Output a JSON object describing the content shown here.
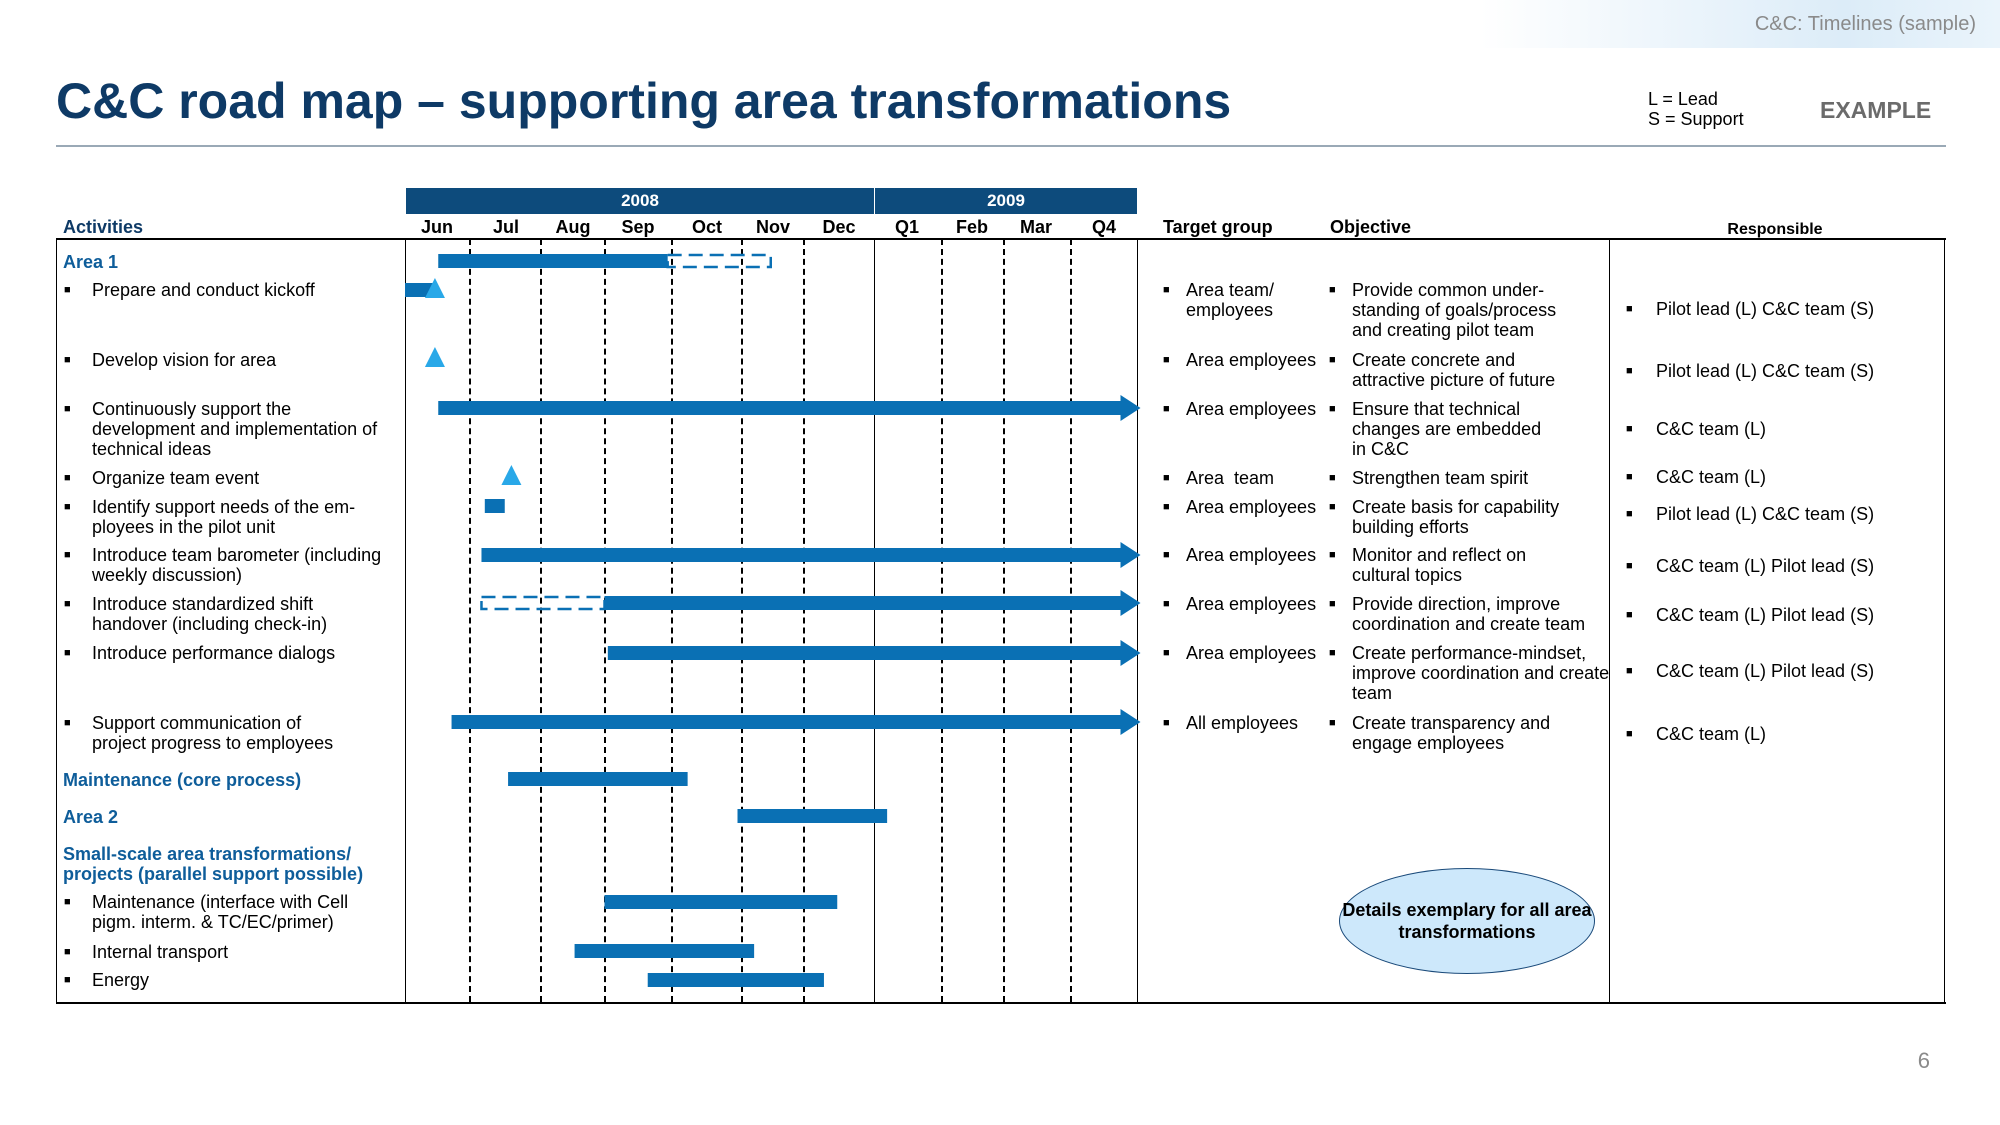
{
  "header": {
    "doc_tag": "C&C:  Timelines (sample)",
    "title": "C&C road map – supporting area transformations",
    "legend_lead": "L = Lead",
    "legend_support": "S = Support",
    "example_tag": "EXAMPLE",
    "page_number": "6"
  },
  "columns": {
    "activities": "Activities",
    "target_group": "Target group",
    "objective": "Objective",
    "responsible": "Responsible"
  },
  "timeline": {
    "years": [
      {
        "label": "2008"
      },
      {
        "label": "2009"
      }
    ],
    "periods": [
      "Jun",
      "Jul",
      "Aug",
      "Sep",
      "Oct",
      "Nov",
      "Dec",
      "Q1",
      "Feb",
      "Mar",
      "Q4"
    ]
  },
  "rows": {
    "area1": {
      "label": "Area 1"
    },
    "kickoff": {
      "activity": "Prepare and conduct kickoff",
      "target": "Area team/ employees",
      "objective": "Provide common under-standing of goals/process and creating pilot team",
      "responsible": "Pilot lead (L) C&C team (S)"
    },
    "vision": {
      "activity": "Develop vision for area",
      "target": "Area employees",
      "objective": "Create concrete and attractive picture of future",
      "responsible": "Pilot lead (L) C&C team (S)"
    },
    "support": {
      "activity": "Continuously support the development and implementation of technical ideas",
      "target": "Area employees",
      "objective": "Ensure that technical changes are embedded in C&C",
      "responsible": "C&C team (L)"
    },
    "event": {
      "activity": "Organize team event",
      "target": "Area  team",
      "objective": "Strengthen team spirit",
      "responsible": "C&C team (L)"
    },
    "needs": {
      "activity": "Identify support needs of the em-ployees in the pilot unit",
      "target": "Area employees",
      "objective": "Create basis for capability building efforts",
      "responsible": "Pilot lead (L) C&C team (S)"
    },
    "barometer": {
      "activity": "Introduce team barometer (including weekly discussion)",
      "target": "Area employees",
      "objective": "Monitor and reflect on cultural topics",
      "responsible": "C&C team (L) Pilot lead (S)"
    },
    "handover": {
      "activity": "Introduce standardized shift handover (including check-in)",
      "target": "Area employees",
      "objective": "Provide direction, improve coordination and create team",
      "responsible": "C&C team (L) Pilot lead (S)"
    },
    "dialogs": {
      "activity": "Introduce performance dialogs",
      "target": "Area employees",
      "objective": "Create performance-mindset, improve coordination and create team",
      "responsible": "C&C team (L) Pilot lead (S)"
    },
    "communication": {
      "activity": "Support communication of project progress to employees",
      "target": "All employees",
      "objective": "Create transparency and engage employees",
      "responsible": "C&C team (L)"
    },
    "maintenance_core": {
      "label": "Maintenance (core process)"
    },
    "area2": {
      "label": "Area 2"
    },
    "small_scale": {
      "label": "Small-scale area transformations/ projects (parallel support possible)"
    },
    "maint_interface": {
      "activity": "Maintenance (interface with Cell pigm. interm. & TC/EC/primer)"
    },
    "transport": {
      "activity": "Internal transport"
    },
    "energy": {
      "activity": "Energy"
    }
  },
  "details_note": "Details exemplary for all area transformations",
  "schedule": {
    "unit": "month index, 0 = start of Jun 2008",
    "bars": [
      {
        "row": "area1",
        "kind": "solid",
        "start": 0.5,
        "end": 3.95
      },
      {
        "row": "area1",
        "kind": "dashed",
        "start": 3.95,
        "end": 5.5
      },
      {
        "row": "kickoff",
        "kind": "solid",
        "start": 0.0,
        "end": 0.45
      },
      {
        "row": "support",
        "kind": "arrow",
        "start": 0.5,
        "end": 11.0
      },
      {
        "row": "needs",
        "kind": "solid",
        "start": 1.2,
        "end": 1.5
      },
      {
        "row": "barometer",
        "kind": "arrow",
        "start": 1.15,
        "end": 11.0
      },
      {
        "row": "handover",
        "kind": "dashed",
        "start": 1.15,
        "end": 3.0
      },
      {
        "row": "handover",
        "kind": "arrow",
        "start": 3.0,
        "end": 11.0
      },
      {
        "row": "dialogs",
        "kind": "arrow",
        "start": 3.05,
        "end": 11.0
      },
      {
        "row": "communication",
        "kind": "arrow",
        "start": 0.7,
        "end": 11.0
      },
      {
        "row": "maintenance_core",
        "kind": "solid",
        "start": 1.55,
        "end": 4.25
      },
      {
        "row": "area2",
        "kind": "solid",
        "start": 5.0,
        "end": 7.25
      },
      {
        "row": "maint_interface",
        "kind": "solid",
        "start": 3.0,
        "end": 6.5
      },
      {
        "row": "transport",
        "kind": "solid",
        "start": 2.55,
        "end": 5.25
      },
      {
        "row": "energy",
        "kind": "solid",
        "start": 3.65,
        "end": 6.3
      }
    ],
    "milestones": [
      {
        "row": "kickoff",
        "at": 0.45
      },
      {
        "row": "vision",
        "at": 0.45
      },
      {
        "row": "event",
        "at": 1.6
      }
    ]
  },
  "colors": {
    "bar": "#0a70b4",
    "milestone": "#29a8e8",
    "title": "#0e3a66",
    "section": "#0e5d9a",
    "year_band": "#0d4b7c",
    "bubble": "#cde8fb"
  }
}
